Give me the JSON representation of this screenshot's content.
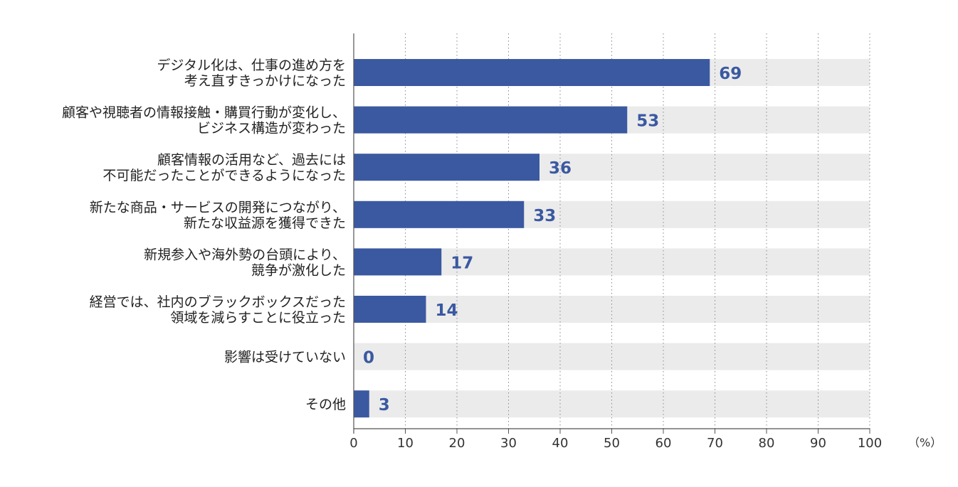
{
  "chart_data": {
    "type": "bar",
    "orientation": "horizontal",
    "categories": [
      [
        "デジタル化は、仕事の進め方を",
        "考え直すきっかけになった"
      ],
      [
        "顧客や視聴者の情報接触・購買行動が変化し、",
        "ビジネス構造が変わった"
      ],
      [
        "顧客情報の活用など、過去には",
        "不可能だったことができるようになった"
      ],
      [
        "新たな商品・サービスの開発につながり、",
        "新たな収益源を獲得できた"
      ],
      [
        "新規参入や海外勢の台頭により、",
        "競争が激化した"
      ],
      [
        "経営では、社内のブラックボックスだった",
        "領域を減らすことに役立った"
      ],
      [
        "影響は受けていない"
      ],
      [
        "その他"
      ]
    ],
    "values": [
      69,
      53,
      36,
      33,
      17,
      14,
      0,
      3
    ],
    "value_labels": [
      "69",
      "53",
      "36",
      "33",
      "17",
      "14",
      "0",
      "3"
    ],
    "xlim": [
      0,
      100
    ],
    "x_ticks": [
      "0",
      "10",
      "20",
      "30",
      "40",
      "50",
      "60",
      "70",
      "80",
      "90",
      "100"
    ],
    "x_unit": "（%）",
    "grid": "vertical-dotted",
    "colors": {
      "bar": "#3b59a1",
      "track": "#ebebeb",
      "value_text": "#3b59a1",
      "axis": "#555555",
      "grid": "#888888"
    }
  }
}
